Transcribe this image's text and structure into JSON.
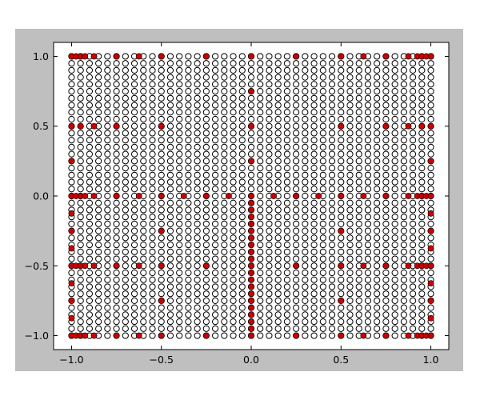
{
  "figure": {
    "background": "#bfbfbf"
  },
  "chart_data": {
    "type": "scatter",
    "title": "",
    "xlabel": "",
    "ylabel": "",
    "xlim": [
      -1.1,
      1.1
    ],
    "ylim": [
      -1.1,
      1.1
    ],
    "grid": false,
    "xticks": [
      -1.0,
      -0.5,
      0.0,
      0.5,
      1.0
    ],
    "yticks": [
      -1.0,
      -0.5,
      0.0,
      0.5,
      1.0
    ],
    "xtick_labels": [
      "−1.0",
      "−0.5",
      "0.0",
      "0.5",
      "1.0"
    ],
    "ytick_labels": [
      "−1.0",
      "−0.5",
      "0.0",
      "0.5",
      "1.0"
    ],
    "series": [
      {
        "marker": "open-circle",
        "color": "#ffffff",
        "edgecolor": "#000000",
        "grid_x": {
          "start": -1.0,
          "stop": 1.0,
          "count": 41
        },
        "grid_y": {
          "start": -1.0,
          "stop": 1.0,
          "count": 41
        }
      },
      {
        "marker": "filled-circle",
        "color": "#cc0000",
        "edgecolor": "#000000",
        "rows": [
          {
            "y": 1.0,
            "x": [
              -1.0,
              -0.975,
              -0.95,
              -0.925,
              -0.875,
              -0.75,
              -0.625,
              -0.5,
              -0.25,
              0.0,
              0.25,
              0.5,
              0.625,
              0.75,
              0.875,
              0.925,
              0.95,
              0.975,
              1.0
            ]
          },
          {
            "y": 0.75,
            "x": [
              0.0
            ]
          },
          {
            "y": 0.5,
            "x": [
              -1.0,
              -0.95,
              -0.875,
              -0.75,
              -0.5,
              0.0,
              0.5,
              0.75,
              0.875,
              0.95,
              1.0
            ]
          },
          {
            "y": 0.25,
            "x": [
              -1.0,
              0.0,
              1.0
            ]
          },
          {
            "y": 0.0,
            "x": [
              -1.0,
              -0.975,
              -0.95,
              -0.925,
              -0.875,
              -0.75,
              -0.625,
              -0.5,
              -0.375,
              -0.25,
              -0.125,
              0.0,
              0.125,
              0.25,
              0.375,
              0.5,
              0.625,
              0.75,
              0.875,
              0.925,
              0.95,
              0.975,
              1.0
            ]
          },
          {
            "y": -0.05,
            "x": [
              0.0
            ]
          },
          {
            "y": -0.1,
            "x": [
              0.0
            ]
          },
          {
            "y": -0.125,
            "x": [
              -1.0,
              1.0
            ]
          },
          {
            "y": -0.15,
            "x": [
              0.0
            ]
          },
          {
            "y": -0.2,
            "x": [
              0.0
            ]
          },
          {
            "y": -0.25,
            "x": [
              -1.0,
              -0.5,
              0.0,
              0.5,
              1.0
            ]
          },
          {
            "y": -0.3,
            "x": [
              0.0
            ]
          },
          {
            "y": -0.35,
            "x": [
              0.0
            ]
          },
          {
            "y": -0.375,
            "x": [
              -1.0,
              1.0
            ]
          },
          {
            "y": -0.4,
            "x": [
              0.0
            ]
          },
          {
            "y": -0.45,
            "x": [
              0.0
            ]
          },
          {
            "y": -0.5,
            "x": [
              -1.0,
              -0.975,
              -0.95,
              -0.925,
              -0.875,
              -0.75,
              -0.625,
              -0.5,
              -0.25,
              0.0,
              0.25,
              0.5,
              0.625,
              0.75,
              0.875,
              0.925,
              0.95,
              0.975,
              1.0
            ]
          },
          {
            "y": -0.55,
            "x": [
              0.0
            ]
          },
          {
            "y": -0.6,
            "x": [
              0.0
            ]
          },
          {
            "y": -0.625,
            "x": [
              -1.0,
              1.0
            ]
          },
          {
            "y": -0.65,
            "x": [
              0.0
            ]
          },
          {
            "y": -0.7,
            "x": [
              0.0
            ]
          },
          {
            "y": -0.75,
            "x": [
              -1.0,
              -0.5,
              0.0,
              0.5,
              1.0
            ]
          },
          {
            "y": -0.8,
            "x": [
              0.0
            ]
          },
          {
            "y": -0.85,
            "x": [
              0.0
            ]
          },
          {
            "y": -0.875,
            "x": [
              -1.0,
              1.0
            ]
          },
          {
            "y": -0.9,
            "x": [
              0.0
            ]
          },
          {
            "y": -0.95,
            "x": [
              0.0
            ]
          },
          {
            "y": -1.0,
            "x": [
              -1.0,
              -0.975,
              -0.95,
              -0.925,
              -0.875,
              -0.75,
              -0.625,
              -0.5,
              -0.25,
              0.0,
              0.25,
              0.5,
              0.625,
              0.75,
              0.875,
              0.925,
              0.95,
              0.975,
              1.0
            ]
          }
        ]
      }
    ]
  }
}
